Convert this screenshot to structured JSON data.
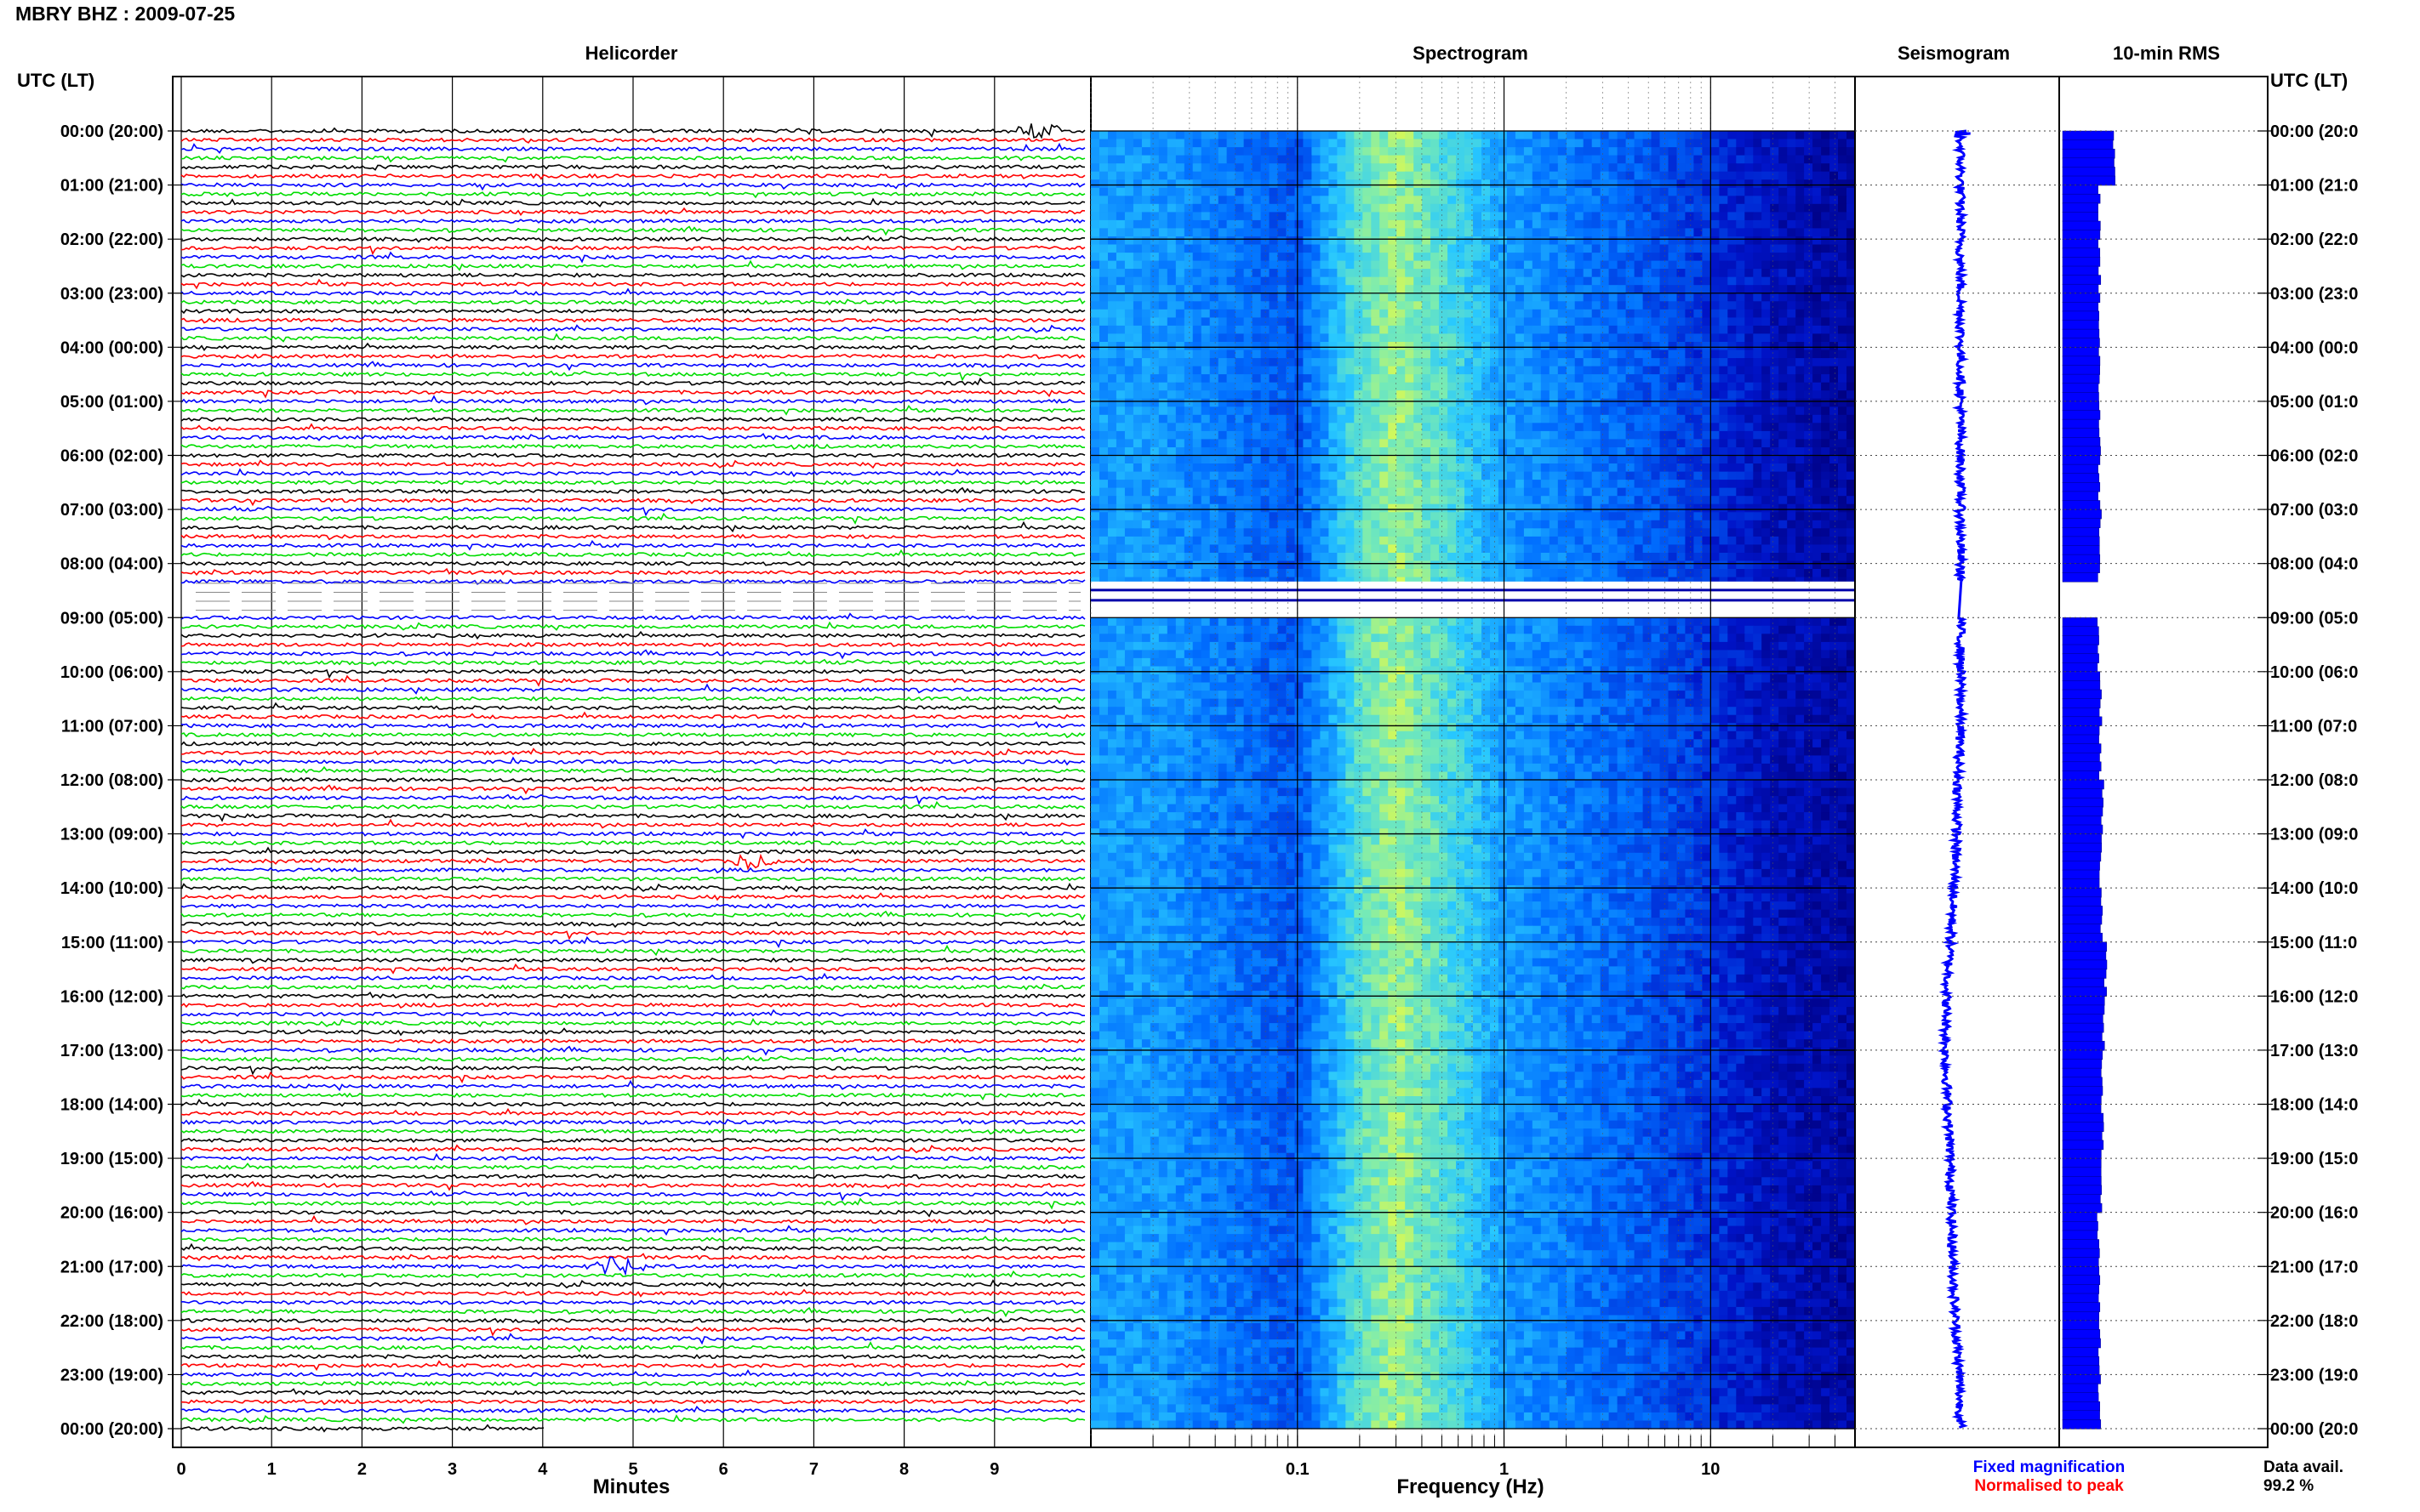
{
  "page": {
    "title": "MBRY BHZ : 2009-07-25",
    "utc_header_left": "UTC (LT)",
    "utc_header_right": "UTC (LT)"
  },
  "panels": {
    "helicorder": "Helicorder",
    "spectrogram": "Spectrogram",
    "seismogram": "Seismogram",
    "rms": "10-min RMS"
  },
  "footer": {
    "fixed_magnification": "Fixed magnification",
    "normalised_to_peak": "Normalised to peak",
    "data_avail_label": "Data avail.",
    "data_avail_value": "99.2 %"
  },
  "colors": {
    "fixed_magnification": "#0000ff",
    "normalised_to_peak": "#ff0000",
    "trace_colors": [
      "#000000",
      "#ff0000",
      "#0000ff",
      "#00dd00"
    ],
    "rms_bar": "#0000ff"
  },
  "chart_data": [
    {
      "type": "line",
      "panel": "Helicorder",
      "xlabel": "Minutes",
      "xlim": [
        0,
        10
      ],
      "x_ticks": [
        "0",
        "1",
        "2",
        "3",
        "4",
        "5",
        "6",
        "7",
        "8",
        "9"
      ],
      "rows_per_hour": 6,
      "hours": 24,
      "row_colors_cycle": [
        "black",
        "red",
        "blue",
        "green"
      ],
      "gap": {
        "start_utc": "08:20",
        "end_utc": "09:00"
      },
      "notable_events": [
        {
          "time_utc": "00:00",
          "minute": 9.5,
          "note": "large transient"
        },
        {
          "time_utc": "13:30",
          "minute": 6.3,
          "note": "transient"
        },
        {
          "time_utc": "21:00",
          "minute": 4.8,
          "note": "transient"
        }
      ],
      "y_labels": [
        "00:00 (20:00)",
        "01:00 (21:00)",
        "02:00 (22:00)",
        "03:00 (23:00)",
        "04:00 (00:00)",
        "05:00 (01:00)",
        "06:00 (02:00)",
        "07:00 (03:00)",
        "08:00 (04:00)",
        "09:00 (05:00)",
        "10:00 (06:00)",
        "11:00 (07:00)",
        "12:00 (08:00)",
        "13:00 (09:00)",
        "14:00 (10:00)",
        "15:00 (11:00)",
        "16:00 (12:00)",
        "17:00 (13:00)",
        "18:00 (14:00)",
        "19:00 (15:00)",
        "20:00 (16:00)",
        "21:00 (17:00)",
        "22:00 (18:00)",
        "23:00 (19:00)",
        "00:00 (20:00)"
      ],
      "y_labels_right": [
        "00:00 (20:0",
        "01:00 (21:0",
        "02:00 (22:0",
        "03:00 (23:0",
        "04:00 (00:0",
        "05:00 (01:0",
        "06:00 (02:0",
        "07:00 (03:0",
        "08:00 (04:0",
        "09:00 (05:0",
        "10:00 (06:0",
        "11:00 (07:0",
        "12:00 (08:0",
        "13:00 (09:0",
        "14:00 (10:0",
        "15:00 (11:0",
        "16:00 (12:0",
        "17:00 (13:0",
        "18:00 (14:0",
        "19:00 (15:0",
        "20:00 (16:0",
        "21:00 (17:0",
        "22:00 (18:0",
        "23:00 (19:0",
        "00:00 (20:0"
      ]
    },
    {
      "type": "heatmap",
      "panel": "Spectrogram",
      "xlabel": "Frequency (Hz)",
      "x_scale": "log",
      "xlim": [
        0.01,
        50
      ],
      "x_ticks": [
        0.1,
        1,
        10
      ],
      "x_tick_labels": [
        "0.1",
        "1",
        "10"
      ],
      "color_profile": [
        {
          "freq_hz": 0.02,
          "level": 0.45
        },
        {
          "freq_hz": 0.1,
          "level": 0.3
        },
        {
          "freq_hz": 0.2,
          "level": 0.65
        },
        {
          "freq_hz": 0.3,
          "level": 0.75
        },
        {
          "freq_hz": 0.6,
          "level": 0.6
        },
        {
          "freq_hz": 1.0,
          "level": 0.45
        },
        {
          "freq_hz": 5.0,
          "level": 0.3
        },
        {
          "freq_hz": 20.0,
          "level": 0.12
        },
        {
          "freq_hz": 50.0,
          "level": 0.06
        }
      ],
      "gap": {
        "start_utc": "08:20",
        "end_utc": "09:00"
      }
    },
    {
      "type": "line",
      "panel": "Seismogram",
      "description_values": "long-period trace drifting left near 16:00-18:00",
      "offset_by_hour": [
        0,
        0,
        0,
        0,
        0,
        0,
        0,
        0,
        0,
        0,
        0,
        0,
        -0.1,
        -0.15,
        -0.25,
        -0.4,
        -0.55,
        -0.6,
        -0.5,
        -0.4,
        -0.35,
        -0.3,
        -0.2,
        -0.05,
        0
      ]
    },
    {
      "type": "bar",
      "panel": "10-min RMS",
      "orientation": "horizontal",
      "bins_per_hour": 6,
      "rms_by_hour": [
        1.0,
        0.72,
        0.72,
        0.72,
        0.72,
        0.72,
        0.72,
        0.74,
        0.72,
        0.7,
        0.74,
        0.74,
        0.78,
        0.74,
        0.76,
        0.84,
        0.8,
        0.78,
        0.78,
        0.74,
        0.7,
        0.7,
        0.72,
        0.72
      ]
    }
  ]
}
